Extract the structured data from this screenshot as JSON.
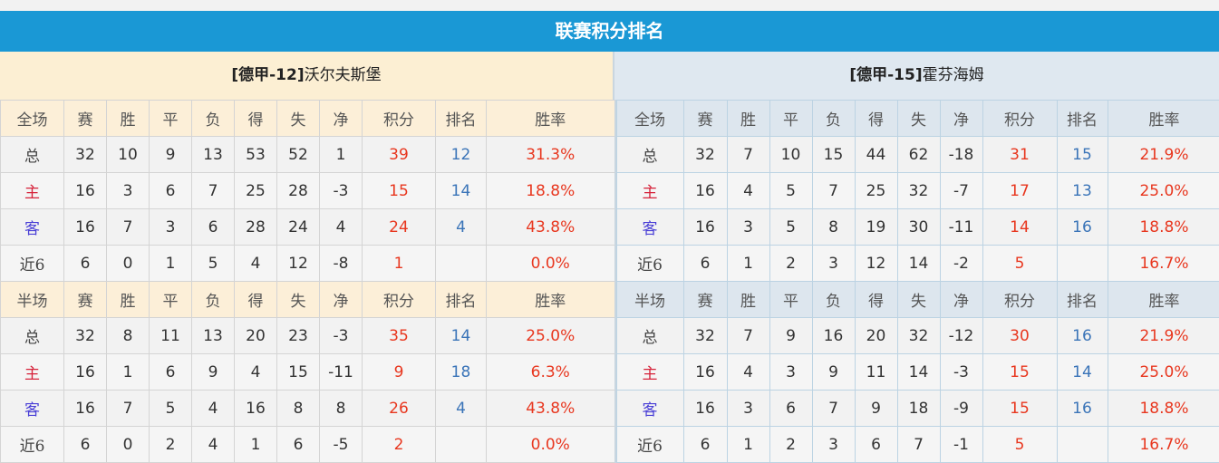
{
  "title": "联赛积分排名",
  "left_team": {
    "tag": "[德甲-12]",
    "name": "沃尔夫斯堡"
  },
  "right_team": {
    "tag": "[德甲-15]",
    "name": "霍芬海姆"
  },
  "columns": [
    "赛",
    "胜",
    "平",
    "负",
    "得",
    "失",
    "净",
    "积分",
    "排名",
    "胜率"
  ],
  "sections": [
    "全场",
    "半场"
  ],
  "left": {
    "full": [
      [
        "总",
        "32",
        "10",
        "9",
        "13",
        "53",
        "52",
        "1",
        "39",
        "12",
        "31.3%"
      ],
      [
        "主",
        "16",
        "3",
        "6",
        "7",
        "25",
        "28",
        "-3",
        "15",
        "14",
        "18.8%"
      ],
      [
        "客",
        "16",
        "7",
        "3",
        "6",
        "28",
        "24",
        "4",
        "24",
        "4",
        "43.8%"
      ],
      [
        "近6",
        "6",
        "0",
        "1",
        "5",
        "4",
        "12",
        "-8",
        "1",
        "",
        "0.0%"
      ]
    ],
    "half": [
      [
        "总",
        "32",
        "8",
        "11",
        "13",
        "20",
        "23",
        "-3",
        "35",
        "14",
        "25.0%"
      ],
      [
        "主",
        "16",
        "1",
        "6",
        "9",
        "4",
        "15",
        "-11",
        "9",
        "18",
        "6.3%"
      ],
      [
        "客",
        "16",
        "7",
        "5",
        "4",
        "16",
        "8",
        "8",
        "26",
        "4",
        "43.8%"
      ],
      [
        "近6",
        "6",
        "0",
        "2",
        "4",
        "1",
        "6",
        "-5",
        "2",
        "",
        "0.0%"
      ]
    ]
  },
  "right": {
    "full": [
      [
        "总",
        "32",
        "7",
        "10",
        "15",
        "44",
        "62",
        "-18",
        "31",
        "15",
        "21.9%"
      ],
      [
        "主",
        "16",
        "4",
        "5",
        "7",
        "25",
        "32",
        "-7",
        "17",
        "13",
        "25.0%"
      ],
      [
        "客",
        "16",
        "3",
        "5",
        "8",
        "19",
        "30",
        "-11",
        "14",
        "16",
        "18.8%"
      ],
      [
        "近6",
        "6",
        "1",
        "2",
        "3",
        "12",
        "14",
        "-2",
        "5",
        "",
        "16.7%"
      ]
    ],
    "half": [
      [
        "总",
        "32",
        "7",
        "9",
        "16",
        "20",
        "32",
        "-12",
        "30",
        "16",
        "21.9%"
      ],
      [
        "主",
        "16",
        "4",
        "3",
        "9",
        "11",
        "14",
        "-3",
        "15",
        "14",
        "25.0%"
      ],
      [
        "客",
        "16",
        "3",
        "6",
        "7",
        "9",
        "18",
        "-9",
        "15",
        "16",
        "18.8%"
      ],
      [
        "近6",
        "6",
        "1",
        "2",
        "3",
        "6",
        "7",
        "-1",
        "5",
        "",
        "16.7%"
      ]
    ]
  },
  "colors": {
    "header": "#1a98d5",
    "points": "#e8371f",
    "rank": "#3a74b8",
    "home": "#d6223a",
    "away": "#4a3fd6"
  }
}
